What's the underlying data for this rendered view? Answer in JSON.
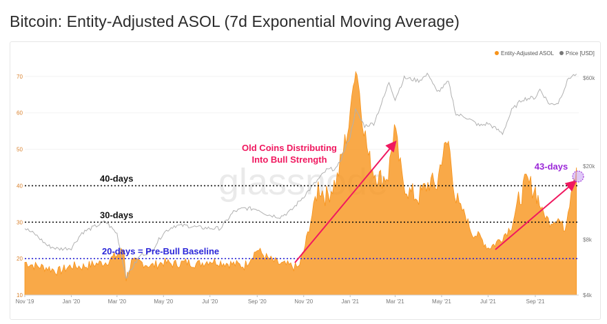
{
  "title": "Bitcoin: Entity-Adjusted ASOL (7d Exponential Moving Average)",
  "watermark": "glassnode",
  "colors": {
    "asol": "#f7931a",
    "price": "#b0b0b0",
    "arrow": "#f0185f",
    "baseline": "#2a25d8",
    "highlight": "#9b27d8"
  },
  "chart_data": {
    "type": "area",
    "x_ticks": [
      "Nov '19",
      "Jan '20",
      "Mar '20",
      "May '20",
      "Jul '20",
      "Sep '20",
      "Nov '20",
      "Jan '21",
      "Mar '21",
      "May '21",
      "Jul '21",
      "Sep '21"
    ],
    "left_axis": {
      "ticks": [
        "10",
        "20",
        "30",
        "40",
        "50",
        "60",
        "70"
      ],
      "ylim": [
        10,
        73
      ]
    },
    "right_axis": {
      "ticks": [
        "$4k",
        "$8k",
        "$20k",
        "$60k"
      ],
      "scale": "log"
    },
    "legend": [
      "Entity-Adjusted ASOL",
      "Price [USD]"
    ],
    "series": [
      {
        "name": "Entity-Adjusted ASOL",
        "axis": "left",
        "x": [
          "2019-11-01",
          "2019-11-15",
          "2019-12-01",
          "2019-12-15",
          "2020-01-01",
          "2020-01-15",
          "2020-02-01",
          "2020-02-15",
          "2020-03-01",
          "2020-03-10",
          "2020-03-13",
          "2020-03-20",
          "2020-04-01",
          "2020-04-15",
          "2020-05-01",
          "2020-05-15",
          "2020-06-01",
          "2020-06-15",
          "2020-07-01",
          "2020-07-15",
          "2020-08-01",
          "2020-08-15",
          "2020-09-01",
          "2020-09-15",
          "2020-10-01",
          "2020-10-15",
          "2020-10-25",
          "2020-11-01",
          "2020-11-10",
          "2020-11-20",
          "2020-12-01",
          "2020-12-15",
          "2020-12-25",
          "2021-01-01",
          "2021-01-05",
          "2021-01-10",
          "2021-01-15",
          "2021-01-25",
          "2021-02-01",
          "2021-02-10",
          "2021-02-20",
          "2021-02-28",
          "2021-03-10",
          "2021-03-20",
          "2021-04-01",
          "2021-04-15",
          "2021-04-25",
          "2021-05-01",
          "2021-05-10",
          "2021-05-20",
          "2021-06-01",
          "2021-06-10",
          "2021-06-20",
          "2021-07-01",
          "2021-07-10",
          "2021-07-20",
          "2021-08-01",
          "2021-08-10",
          "2021-08-20",
          "2021-09-01",
          "2021-09-10",
          "2021-09-20",
          "2021-10-01",
          "2021-10-10",
          "2021-10-20",
          "2021-10-25"
        ],
        "y": [
          19,
          18,
          17.5,
          16.5,
          18,
          17.8,
          18.5,
          19,
          21,
          22.5,
          14.5,
          19,
          19,
          18,
          19,
          18.5,
          19,
          18.5,
          19.5,
          19,
          18.5,
          18,
          22.5,
          20,
          18.5,
          18,
          17.5,
          22,
          30,
          40,
          37,
          42,
          52,
          58,
          70,
          72,
          62,
          48,
          44,
          42,
          43,
          56,
          42,
          38,
          37,
          41,
          40,
          48,
          52,
          36,
          32,
          27,
          26,
          23,
          24,
          26,
          29,
          36,
          41,
          39,
          33,
          30,
          31,
          28,
          42,
          45
        ]
      },
      {
        "name": "Price [USD]",
        "axis": "right",
        "x": [
          "2019-11-01",
          "2019-11-15",
          "2019-12-01",
          "2019-12-15",
          "2020-01-01",
          "2020-01-15",
          "2020-02-01",
          "2020-02-15",
          "2020-03-01",
          "2020-03-13",
          "2020-04-01",
          "2020-04-15",
          "2020-05-01",
          "2020-05-15",
          "2020-06-01",
          "2020-06-15",
          "2020-07-01",
          "2020-07-15",
          "2020-08-01",
          "2020-08-15",
          "2020-09-01",
          "2020-09-15",
          "2020-10-01",
          "2020-10-15",
          "2020-11-01",
          "2020-11-15",
          "2020-12-01",
          "2020-12-15",
          "2021-01-01",
          "2021-01-08",
          "2021-01-20",
          "2021-02-01",
          "2021-02-15",
          "2021-02-21",
          "2021-03-01",
          "2021-03-13",
          "2021-04-01",
          "2021-04-14",
          "2021-04-25",
          "2021-05-10",
          "2021-05-20",
          "2021-06-01",
          "2021-06-20",
          "2021-07-01",
          "2021-07-20",
          "2021-08-01",
          "2021-08-15",
          "2021-09-01",
          "2021-09-07",
          "2021-09-20",
          "2021-10-01",
          "2021-10-15",
          "2021-10-25"
        ],
        "y": [
          9200,
          8500,
          7400,
          7100,
          7200,
          8700,
          9400,
          10000,
          8600,
          5000,
          6600,
          6900,
          8700,
          9500,
          9500,
          9300,
          9200,
          9200,
          11300,
          11800,
          11700,
          10900,
          10600,
          11400,
          13700,
          16000,
          19000,
          19500,
          29000,
          40000,
          33000,
          34000,
          48000,
          57000,
          46000,
          60000,
          58000,
          63000,
          50000,
          57000,
          38000,
          37000,
          33000,
          34000,
          30000,
          40000,
          46000,
          47000,
          52000,
          43000,
          44000,
          60000,
          63000
        ]
      }
    ],
    "reference_lines": [
      {
        "label": "40-days",
        "y": 40
      },
      {
        "label": "30-days",
        "y": 30
      },
      {
        "label": "20-days = Pre-Bull Baseline",
        "y": 20
      }
    ],
    "annotations": [
      {
        "text": "Old Coins Distributing Into Bull Strength",
        "lines": [
          "Old Coins Distributing",
          "Into Bull Strength"
        ]
      },
      {
        "text": "43-days"
      }
    ]
  }
}
